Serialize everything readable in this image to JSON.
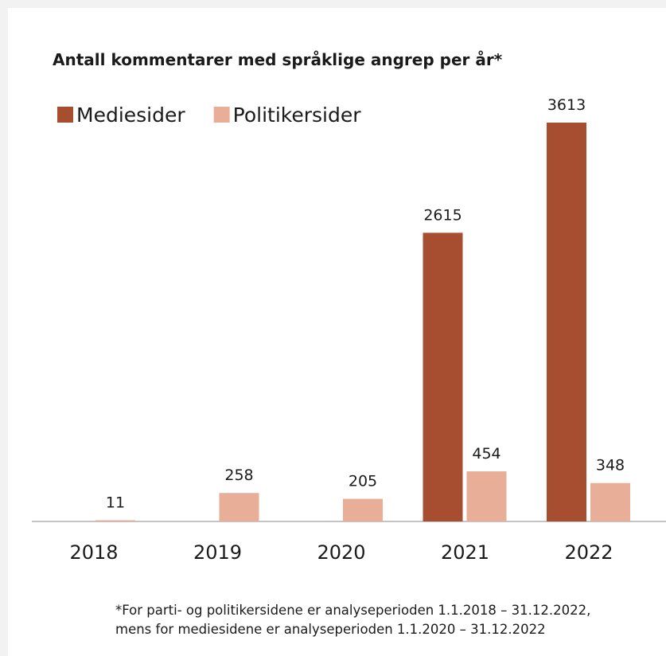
{
  "chart_data": {
    "type": "bar",
    "title": "Antall kommentarer med språklige angrep per år*",
    "categories": [
      "2018",
      "2019",
      "2020",
      "2021",
      "2022"
    ],
    "series": [
      {
        "name": "Mediesider",
        "color": "#a84e30",
        "values": [
          null,
          null,
          null,
          2615,
          3613
        ]
      },
      {
        "name": "Politikersider",
        "color": "#e8ae98",
        "values": [
          11,
          258,
          205,
          454,
          348
        ]
      }
    ],
    "legend": "top-left",
    "footnote": [
      "*For parti- og politikersidene er analyseperioden 1.1.2018 – 31.12.2022,",
      "mens for mediesidene er analyseperioden 1.1.2020 – 31.12.2022"
    ]
  }
}
